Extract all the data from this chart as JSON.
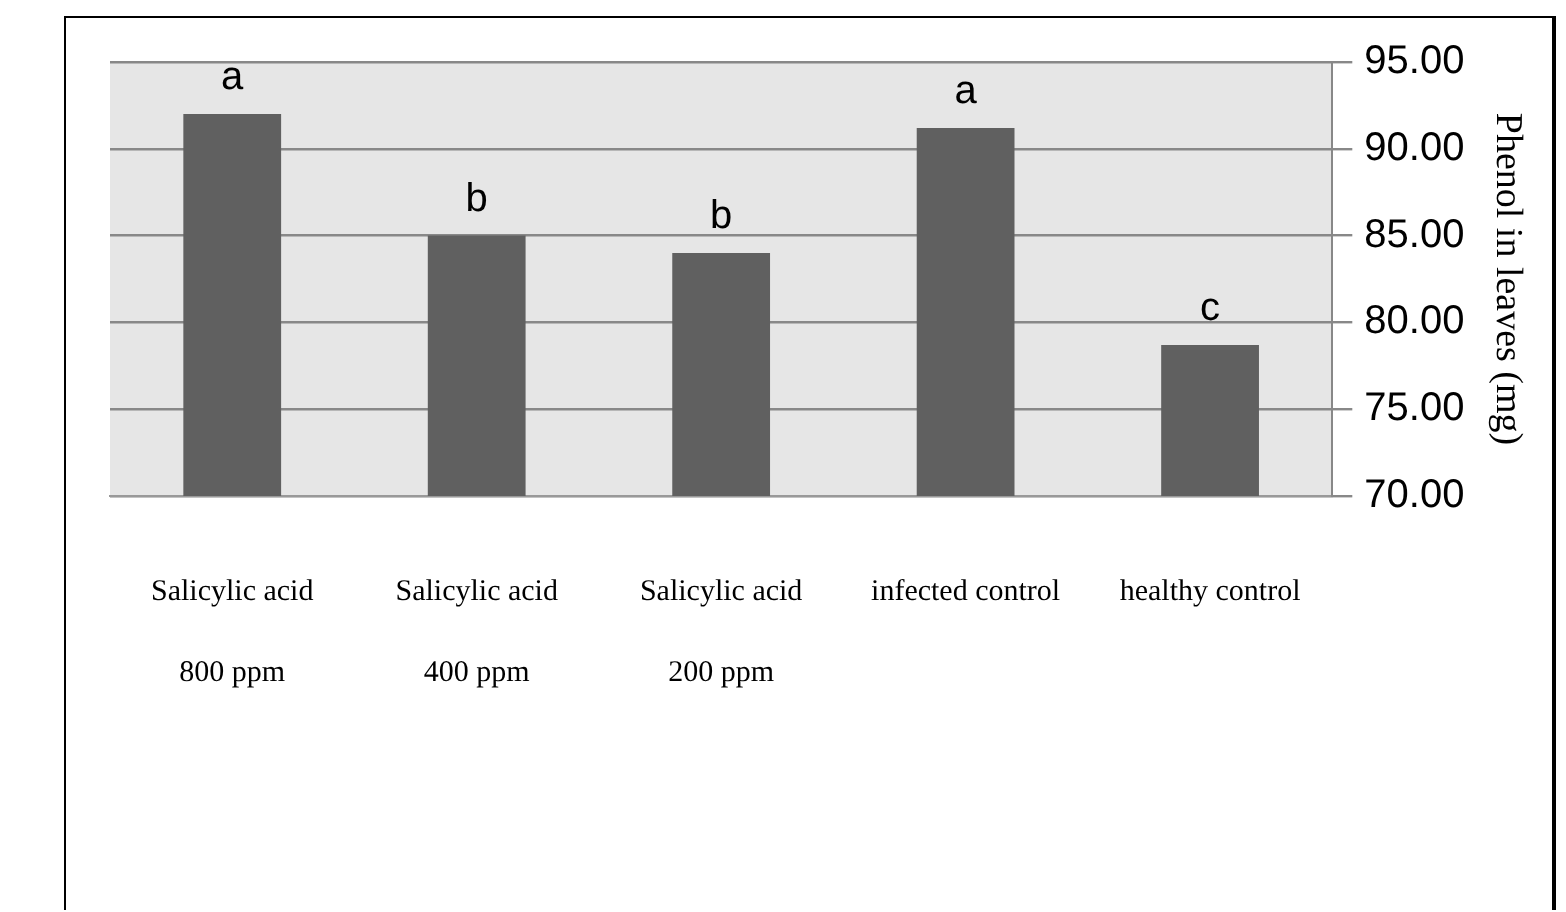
{
  "chart_data": {
    "type": "bar",
    "ylabel": "Phenol in leaves (mg)",
    "categories": [
      "Salicylic acid\n800 ppm",
      "Salicylic acid\n400 ppm",
      "Salicylic acid\n200 ppm",
      "infected control",
      "healthy control"
    ],
    "values": [
      92.0,
      85.0,
      84.0,
      91.2,
      78.7
    ],
    "color": "#606060",
    "ylim": [
      70,
      95
    ],
    "yticks": [
      {
        "value": 70,
        "label": "70.00"
      },
      {
        "value": 75,
        "label": "75.00"
      },
      {
        "value": 80,
        "label": "80.00"
      },
      {
        "value": 85,
        "label": "85.00"
      },
      {
        "value": 90,
        "label": "90.00"
      },
      {
        "value": 95,
        "label": "95.00"
      }
    ],
    "grid": "y",
    "legend": false,
    "annotations": [
      {
        "text": "a",
        "x": "Salicylic acid\n800 ppm",
        "y": 92.0
      },
      {
        "text": "b",
        "x": "Salicylic acid\n400 ppm",
        "y": 85.0
      },
      {
        "text": "b",
        "x": "Salicylic acid\n200 ppm",
        "y": 84.0
      },
      {
        "text": "a",
        "x": "infected control",
        "y": 91.2
      },
      {
        "text": "c",
        "x": "healthy control",
        "y": 78.7
      }
    ]
  }
}
